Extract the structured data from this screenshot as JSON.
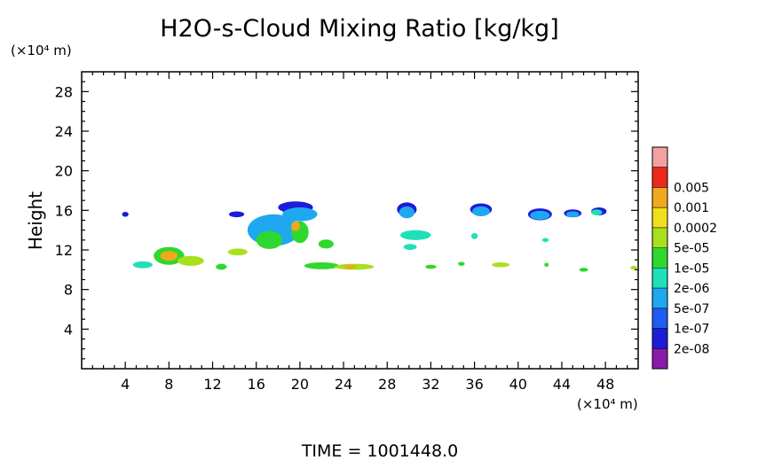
{
  "chart_data": {
    "type": "heatmap",
    "title": "H2O-s-Cloud Mixing Ratio [kg/kg]",
    "xlabel": "",
    "ylabel": "Height",
    "x_unit": "(×10⁴ m)",
    "y_unit": "(×10⁴ m)",
    "xlim": [
      0,
      51
    ],
    "ylim": [
      0,
      30
    ],
    "x_ticks": [
      4,
      8,
      12,
      16,
      20,
      24,
      28,
      32,
      36,
      40,
      44,
      48
    ],
    "y_ticks": [
      4,
      8,
      12,
      16,
      20,
      24,
      28
    ],
    "time_label": "TIME = 1001448.0",
    "colorbar": {
      "levels": [
        "2e-08",
        "1e-07",
        "5e-07",
        "2e-06",
        "1e-05",
        "5e-05",
        "0.0002",
        "0.001",
        "0.005"
      ],
      "colors": [
        "#8a1aa8",
        "#1c1cd8",
        "#1f5cf0",
        "#1fa8f0",
        "#1fe0b8",
        "#2ed82e",
        "#a8e01c",
        "#f0e01c",
        "#f0a81c",
        "#f0281c",
        "#f5a0a0"
      ]
    },
    "cells": [
      {
        "x": 4.0,
        "y": 15.6,
        "rx": 0.3,
        "ry": 0.25,
        "level": 1
      },
      {
        "x": 5.6,
        "y": 10.5,
        "rx": 0.9,
        "ry": 0.35,
        "level": 4
      },
      {
        "x": 8.0,
        "y": 11.4,
        "rx": 1.4,
        "ry": 0.9,
        "level": 5
      },
      {
        "x": 8.0,
        "y": 11.4,
        "rx": 0.8,
        "ry": 0.5,
        "level": 8
      },
      {
        "x": 10.0,
        "y": 10.9,
        "rx": 1.2,
        "ry": 0.5,
        "level": 6
      },
      {
        "x": 12.8,
        "y": 10.3,
        "rx": 0.5,
        "ry": 0.3,
        "level": 5
      },
      {
        "x": 14.2,
        "y": 15.6,
        "rx": 0.7,
        "ry": 0.3,
        "level": 1
      },
      {
        "x": 14.3,
        "y": 11.8,
        "rx": 0.9,
        "ry": 0.35,
        "level": 6
      },
      {
        "x": 17.6,
        "y": 14.0,
        "rx": 2.4,
        "ry": 1.6,
        "level": 3
      },
      {
        "x": 17.2,
        "y": 13.0,
        "rx": 1.2,
        "ry": 0.9,
        "level": 5
      },
      {
        "x": 19.6,
        "y": 16.3,
        "rx": 1.6,
        "ry": 0.6,
        "level": 1
      },
      {
        "x": 20.0,
        "y": 15.6,
        "rx": 1.6,
        "ry": 0.7,
        "level": 3
      },
      {
        "x": 20.0,
        "y": 13.8,
        "rx": 0.8,
        "ry": 1.1,
        "level": 5
      },
      {
        "x": 19.6,
        "y": 14.4,
        "rx": 0.4,
        "ry": 0.5,
        "level": 8
      },
      {
        "x": 22.4,
        "y": 12.6,
        "rx": 0.7,
        "ry": 0.45,
        "level": 5
      },
      {
        "x": 22.0,
        "y": 10.4,
        "rx": 1.6,
        "ry": 0.35,
        "level": 5
      },
      {
        "x": 25.0,
        "y": 10.3,
        "rx": 1.8,
        "ry": 0.3,
        "level": 6
      },
      {
        "x": 24.6,
        "y": 10.3,
        "rx": 0.5,
        "ry": 0.2,
        "level": 8
      },
      {
        "x": 29.8,
        "y": 16.1,
        "rx": 0.9,
        "ry": 0.7,
        "level": 1
      },
      {
        "x": 29.8,
        "y": 15.8,
        "rx": 0.7,
        "ry": 0.6,
        "level": 3
      },
      {
        "x": 30.6,
        "y": 13.5,
        "rx": 1.4,
        "ry": 0.5,
        "level": 4
      },
      {
        "x": 30.1,
        "y": 12.3,
        "rx": 0.6,
        "ry": 0.3,
        "level": 4
      },
      {
        "x": 32.0,
        "y": 10.3,
        "rx": 0.5,
        "ry": 0.2,
        "level": 5
      },
      {
        "x": 34.8,
        "y": 10.6,
        "rx": 0.3,
        "ry": 0.2,
        "level": 5
      },
      {
        "x": 36.6,
        "y": 16.1,
        "rx": 1.0,
        "ry": 0.6,
        "level": 1
      },
      {
        "x": 36.6,
        "y": 15.9,
        "rx": 0.8,
        "ry": 0.5,
        "level": 3
      },
      {
        "x": 36.0,
        "y": 13.4,
        "rx": 0.3,
        "ry": 0.3,
        "level": 4
      },
      {
        "x": 38.4,
        "y": 10.5,
        "rx": 0.8,
        "ry": 0.25,
        "level": 6
      },
      {
        "x": 42.0,
        "y": 15.6,
        "rx": 1.1,
        "ry": 0.6,
        "level": 1
      },
      {
        "x": 42.0,
        "y": 15.5,
        "rx": 0.9,
        "ry": 0.45,
        "level": 3
      },
      {
        "x": 42.5,
        "y": 13.0,
        "rx": 0.3,
        "ry": 0.2,
        "level": 4
      },
      {
        "x": 42.6,
        "y": 10.5,
        "rx": 0.2,
        "ry": 0.2,
        "level": 5
      },
      {
        "x": 45.0,
        "y": 15.7,
        "rx": 0.8,
        "ry": 0.4,
        "level": 1
      },
      {
        "x": 45.0,
        "y": 15.6,
        "rx": 0.6,
        "ry": 0.3,
        "level": 3
      },
      {
        "x": 47.4,
        "y": 15.9,
        "rx": 0.7,
        "ry": 0.4,
        "level": 1
      },
      {
        "x": 47.2,
        "y": 15.8,
        "rx": 0.5,
        "ry": 0.3,
        "level": 4
      },
      {
        "x": 46.0,
        "y": 10.0,
        "rx": 0.4,
        "ry": 0.2,
        "level": 5
      },
      {
        "x": 50.6,
        "y": 10.2,
        "rx": 0.3,
        "ry": 0.2,
        "level": 6
      }
    ]
  }
}
